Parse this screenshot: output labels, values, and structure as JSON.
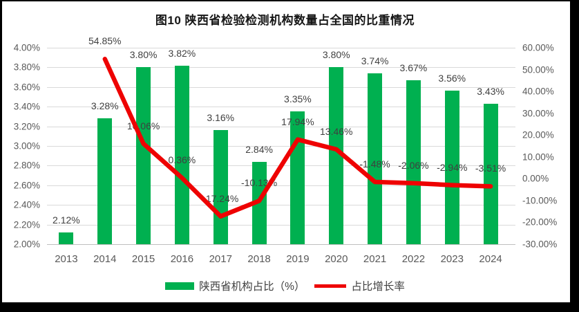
{
  "title": "图10  陕西省检验检测机构数量占全国的比重情况",
  "colors": {
    "bar": "#00B050",
    "line": "#EE0202",
    "gridline": "#d9d9d9",
    "axis_text": "#595959",
    "label_text": "#3f3f3f",
    "photo_border": "#000000"
  },
  "legend": {
    "items": [
      {
        "label": "陕西省机构占比（%）",
        "swatch": "bar-swatch",
        "color": "#00B050"
      },
      {
        "label": "占比增长率",
        "swatch": "line-swatch",
        "color": "#EE0202"
      }
    ]
  },
  "chart_data": {
    "type": "combo",
    "title": "图10  陕西省检验检测机构数量占全国的比重情况",
    "categories": [
      "2013",
      "2014",
      "2015",
      "2016",
      "2017",
      "2018",
      "2019",
      "2020",
      "2021",
      "2022",
      "2023",
      "2024"
    ],
    "series": [
      {
        "name": "陕西省机构占比（%）",
        "type": "bar",
        "axis": "left",
        "color": "#00B050",
        "values": [
          2.12,
          3.28,
          3.8,
          3.82,
          3.16,
          2.84,
          3.35,
          3.8,
          3.74,
          3.67,
          3.56,
          3.43
        ],
        "labels": [
          "2.12%",
          "3.28%",
          "3.80%",
          "3.82%",
          "3.16%",
          "2.84%",
          "3.35%",
          "3.80%",
          "3.74%",
          "3.67%",
          "3.56%",
          "3.43%"
        ]
      },
      {
        "name": "占比增长率",
        "type": "line",
        "axis": "right",
        "color": "#EE0202",
        "values": [
          null,
          54.85,
          16.06,
          0.36,
          -17.24,
          -10.13,
          17.94,
          13.46,
          -1.48,
          -2.06,
          -2.94,
          -3.51
        ],
        "labels": [
          null,
          "54.85%",
          "16.06%",
          "0.36%",
          "-17.24%",
          "-10.13%",
          "17.94%",
          "13.46%",
          "-1.48%",
          "-2.06%",
          "-2.94%",
          "-3.51%"
        ]
      }
    ],
    "left_axis": {
      "min": 2.0,
      "max": 4.0,
      "step": 0.2,
      "ticks": [
        "4.00%",
        "3.80%",
        "3.60%",
        "3.40%",
        "3.20%",
        "3.00%",
        "2.80%",
        "2.60%",
        "2.40%",
        "2.20%",
        "2.00%"
      ]
    },
    "right_axis": {
      "min": -30,
      "max": 60,
      "step": 10,
      "ticks": [
        "60.00%",
        "50.00%",
        "40.00%",
        "30.00%",
        "20.00%",
        "10.00%",
        "0.00%",
        "-10.00%",
        "-20.00%",
        "-30.00%"
      ]
    },
    "grid": true,
    "legend_position": "bottom"
  }
}
